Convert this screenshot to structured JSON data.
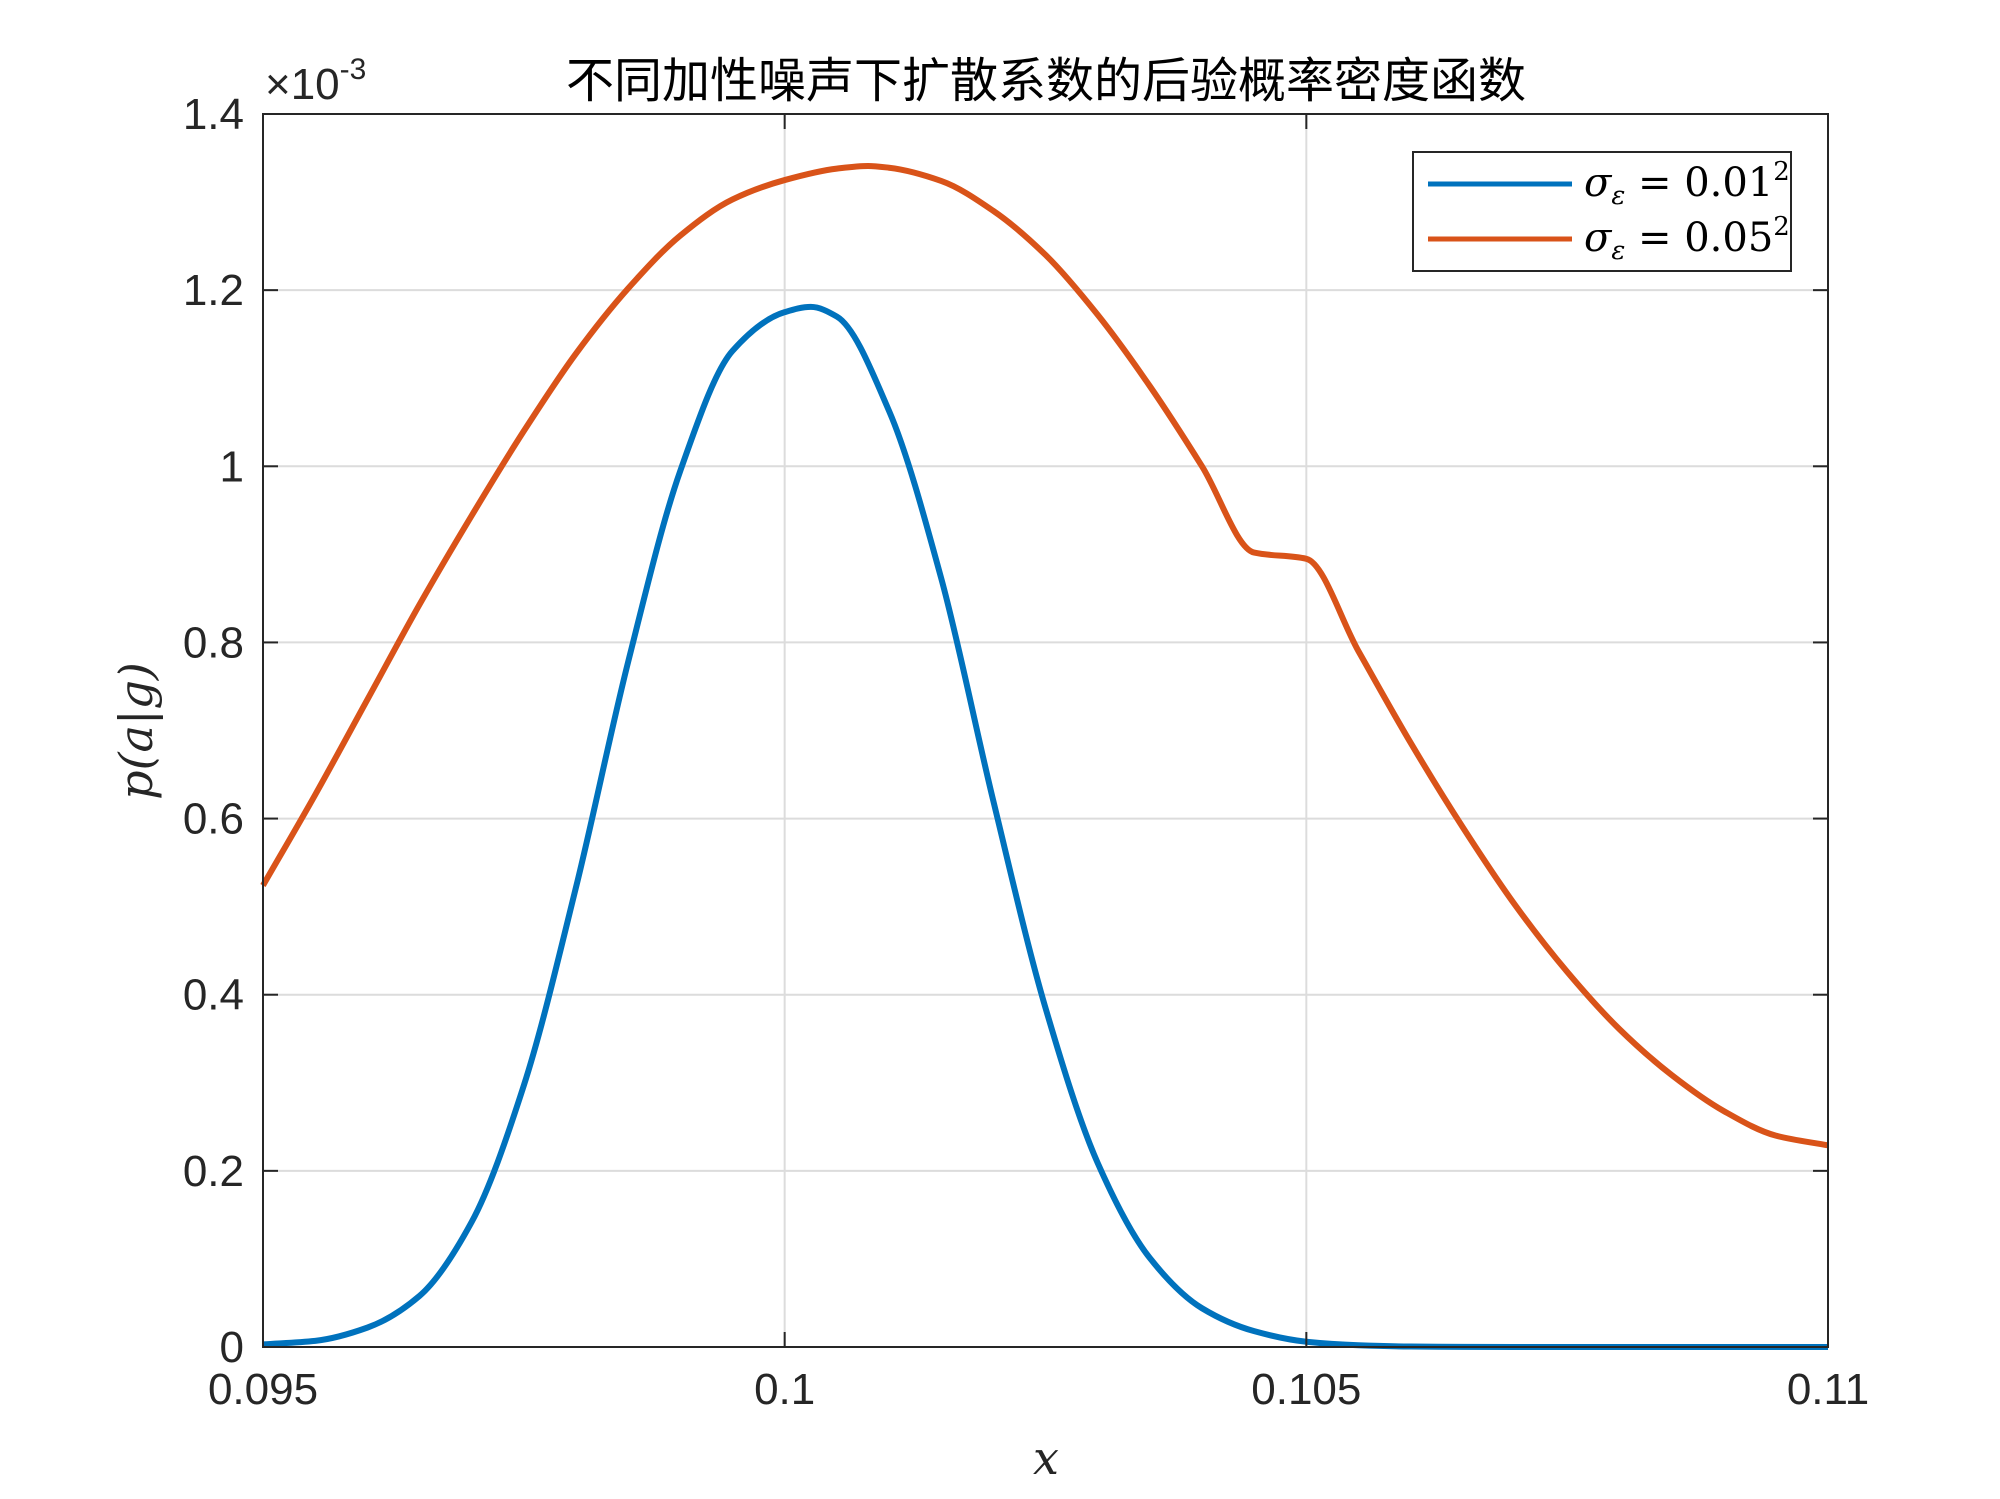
{
  "chart_data": {
    "type": "line",
    "title": "不同加性噪声下扩散系数的后验概率密度函数",
    "xlabel": "x",
    "ylabel": "p(a|g)",
    "xlim": [
      0.095,
      0.11
    ],
    "ylim": [
      0,
      0.0014
    ],
    "x_ticks": [
      0.095,
      0.1,
      0.105,
      0.11
    ],
    "x_tick_labels": [
      "0.095",
      "0.1",
      "0.105",
      "0.11"
    ],
    "y_ticks": [
      0,
      0.0002,
      0.0004,
      0.0006,
      0.0008,
      0.001,
      0.0012,
      0.0014
    ],
    "y_tick_labels": [
      "0",
      "0.2",
      "0.4",
      "0.6",
      "0.8",
      "1",
      "1.2",
      "1.4"
    ],
    "y_exponent": {
      "base": "×10",
      "power": "-3"
    },
    "grid": true,
    "legend_position": "top-right",
    "series": [
      {
        "name": "σε = 0.01²",
        "name_parts": {
          "symbol": "σ",
          "subscript": "ε",
          "equals": " = ",
          "value": "0.01",
          "superscript": "2"
        },
        "color": "#0072bd",
        "x": [
          0.095,
          0.0955,
          0.096,
          0.0965,
          0.097,
          0.0975,
          0.098,
          0.0985,
          0.099,
          0.0995,
          0.1,
          0.10025,
          0.1005,
          0.101,
          0.1015,
          0.102,
          0.1025,
          0.103,
          0.1035,
          0.104,
          0.1045,
          0.105,
          0.1055,
          0.106,
          0.1065,
          0.107,
          0.108,
          0.109,
          0.11
        ],
        "y": [
          3e-06,
          7e-06,
          2.2e-05,
          5.8e-05,
          0.000142,
          0.000297,
          0.000522,
          0.000778,
          0.000995,
          0.001131,
          0.001175,
          0.001181,
          0.00117,
          0.001063,
          0.000873,
          0.00062,
          0.000385,
          0.000209,
          0.000101,
          4.4e-05,
          1.8e-05,
          6e-06,
          2e-06,
          5e-07,
          1e-07,
          0.0,
          0.0,
          0.0,
          0.0
        ]
      },
      {
        "name": "σε = 0.05²",
        "name_parts": {
          "symbol": "σ",
          "subscript": "ε",
          "equals": " = ",
          "value": "0.05",
          "superscript": "2"
        },
        "color": "#d95319",
        "x": [
          0.095,
          0.0955,
          0.096,
          0.0965,
          0.097,
          0.0975,
          0.098,
          0.0985,
          0.099,
          0.0995,
          0.1,
          0.1005,
          0.1008,
          0.101,
          0.1015,
          0.102,
          0.1025,
          0.103,
          0.1035,
          0.104,
          0.1045,
          0.105,
          0.1055,
          0.106,
          0.1065,
          0.107,
          0.1075,
          0.108,
          0.1085,
          0.109,
          0.1095,
          0.11
        ],
        "y": [
          0.000524,
          0.000627,
          0.000735,
          0.000843,
          0.000944,
          0.00104,
          0.001128,
          0.001202,
          0.001262,
          0.001303,
          0.001325,
          0.001338,
          0.001341,
          0.001339,
          0.001324,
          0.00129,
          0.00124,
          0.001172,
          0.001091,
          0.001,
          0.000902,
          0.000895,
          0.00079,
          0.000686,
          0.00059,
          0.000502,
          0.000426,
          0.000361,
          0.000309,
          0.000268,
          0.00024,
          0.000229
        ]
      }
    ]
  }
}
